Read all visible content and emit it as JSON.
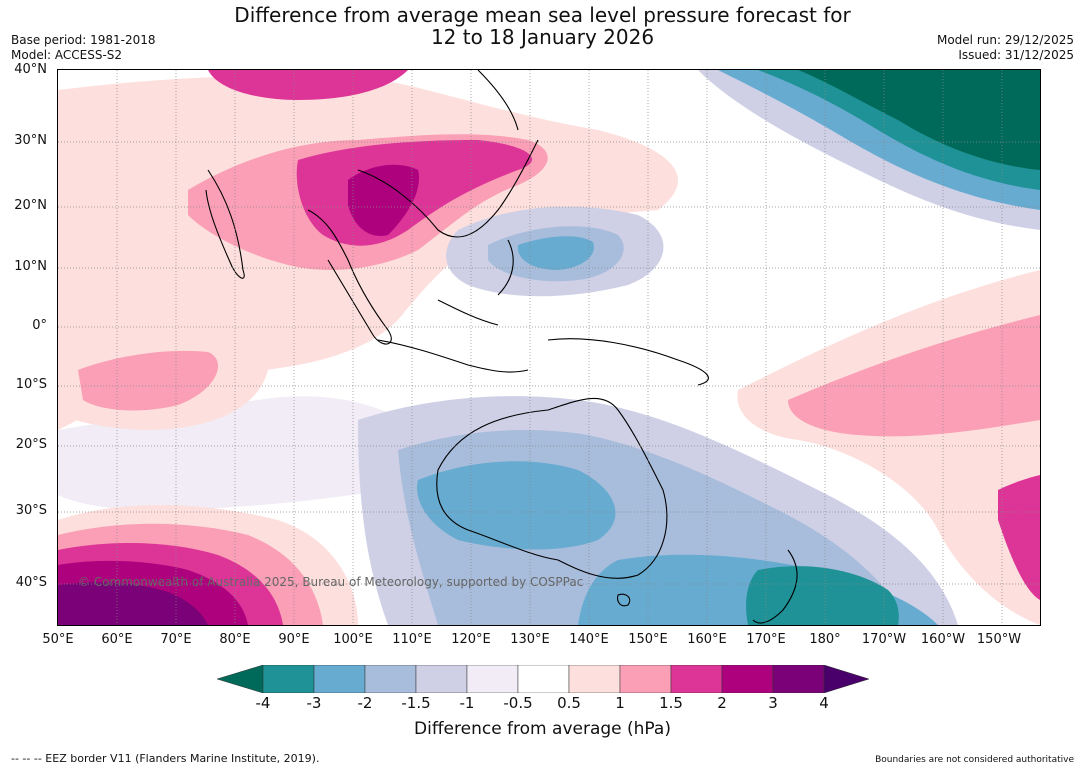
{
  "title": {
    "line1": "Difference from average mean sea level pressure forecast for",
    "line2": "12 to 18 January 2026"
  },
  "meta_left": {
    "base_period": "Base period: 1981-2018",
    "model": "Model: ACCESS-S2"
  },
  "meta_right": {
    "model_run": "Model run: 29/12/2025",
    "issued": "Issued: 31/12/2025"
  },
  "map": {
    "copyright": "© Commonwealth of Australia 2025, Bureau of Meteorology, supported by COSPPac",
    "lat_labels": [
      "40°N",
      "30°N",
      "20°N",
      "10°N",
      "0°",
      "10°S",
      "20°S",
      "30°S",
      "40°S"
    ],
    "lon_labels": [
      "50°E",
      "60°E",
      "70°E",
      "80°E",
      "90°E",
      "100°E",
      "110°E",
      "120°E",
      "130°E",
      "140°E",
      "150°E",
      "160°E",
      "170°E",
      "180°",
      "170°W",
      "160°W",
      "150°W"
    ]
  },
  "colorbar": {
    "ticks": [
      "-4",
      "-3",
      "-2",
      "-1.5",
      "-1",
      "-0.5",
      "0.5",
      "1",
      "1.5",
      "2",
      "3",
      "4"
    ],
    "colors": [
      "#006a5a",
      "#1e9296",
      "#67abd0",
      "#a8bcdb",
      "#cfd0e6",
      "#f1ecf5",
      "#ffffff",
      "#fde0dd",
      "#fa9fb5",
      "#dd3497",
      "#ae017e",
      "#7a0177",
      "#49006a"
    ],
    "title": "Difference from average (hPa)"
  },
  "footer": {
    "left": "--  --  -- EEZ border V11 (Flanders Marine Institute, 2019).",
    "right": "Boundaries are not considered authoritative"
  }
}
